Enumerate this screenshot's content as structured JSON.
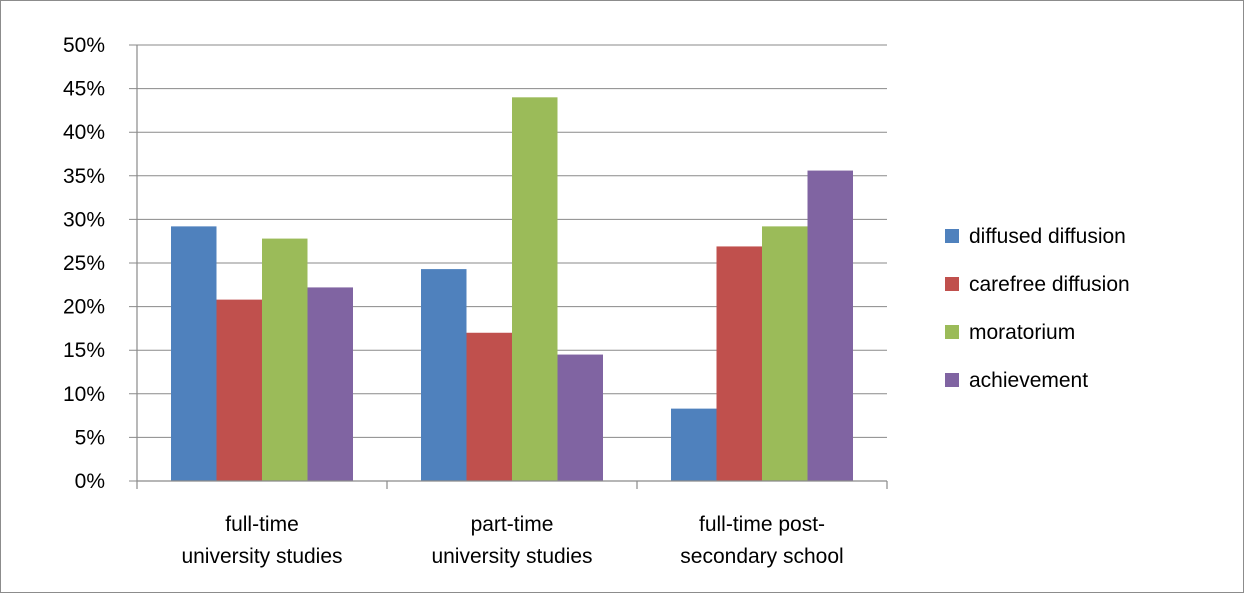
{
  "chart_data": {
    "type": "bar",
    "title": "",
    "xlabel": "",
    "ylabel": "",
    "categories": [
      [
        "full-time",
        "university studies"
      ],
      [
        "part-time",
        "university studies"
      ],
      [
        "full-time post-",
        "secondary school"
      ]
    ],
    "series": [
      {
        "name": "diffused diffusion",
        "color": "#4f81bd",
        "values": [
          29.2,
          24.3,
          8.3
        ]
      },
      {
        "name": "carefree diffusion",
        "color": "#c0504d",
        "values": [
          20.8,
          17.0,
          26.9
        ]
      },
      {
        "name": "moratorium",
        "color": "#9bbb59",
        "values": [
          27.8,
          44.0,
          29.2
        ]
      },
      {
        "name": "achievement",
        "color": "#8064a2",
        "values": [
          22.2,
          14.5,
          35.6
        ]
      }
    ],
    "ylim": [
      0,
      50
    ],
    "yticks": [
      0,
      5,
      10,
      15,
      20,
      25,
      30,
      35,
      40,
      45,
      50
    ],
    "ytick_suffix": "%",
    "grid": true,
    "legend_position": "right"
  }
}
